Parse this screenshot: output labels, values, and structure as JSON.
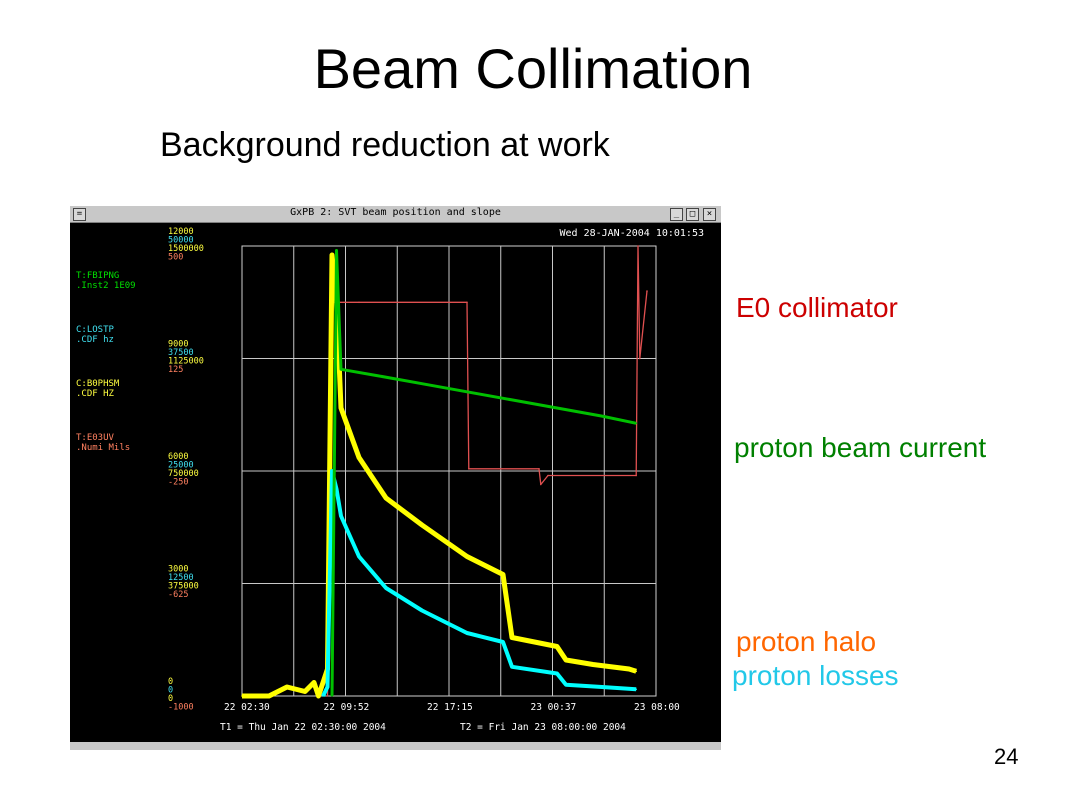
{
  "slide": {
    "title": "Beam Collimation",
    "subtitle": "Background reduction at work",
    "page_number": "24"
  },
  "window": {
    "title": "GxPB 2: SVT beam position and slope",
    "datetime": "Wed 28-JAN-2004 10:01:53",
    "t1": "T1 = Thu Jan 22 02:30:00 2004",
    "t2": "T2 = Fri Jan 23 08:00:00 2004",
    "buttons": {
      "menu": "=",
      "minimize": "_",
      "maximize": "□",
      "close": "×"
    }
  },
  "colors": {
    "yellow": "#ffff00",
    "green": "#00c000",
    "cyan": "#00ffff",
    "red": "#e05050",
    "annot_red": "#cc0000",
    "annot_green": "#008000",
    "annot_orange": "#ff6600",
    "annot_cyan": "#22c8e8",
    "label_green": "#00e000",
    "label_cyan": "#40e0f0",
    "label_orange": "#ff8060"
  },
  "devices": [
    {
      "name": "T:FBIPNG",
      "units": ".Inst2  1E09",
      "color": "#00e000"
    },
    {
      "name": "C:LOSTP",
      "units": ".CDF      hz",
      "color": "#40e0f0"
    },
    {
      "name": "C:B0PHSM",
      "units": ".CDF     HZ",
      "color": "#ffff40"
    },
    {
      "name": "T:E03UV",
      "units": ".Numi   Mils",
      "color": "#ff8060"
    }
  ],
  "annotations": {
    "collimator": "E0 collimator",
    "beam_current": "proton beam current",
    "halo": "proton halo",
    "losses": "proton losses"
  },
  "chart_data": {
    "type": "line",
    "title": "",
    "xlabel": "",
    "ylabel": "",
    "grid": true,
    "x_tick_labels": [
      "22 02:30",
      "22 09:52",
      "22 17:15",
      "23 00:37",
      "23 08:00"
    ],
    "y_axes": [
      {
        "color": "#ffff40",
        "ticks": [
          "12000",
          "9000",
          "6000",
          "3000",
          "0"
        ]
      },
      {
        "color": "#40e0f0",
        "ticks": [
          "50000",
          "37500",
          "25000",
          "12500",
          "0"
        ]
      },
      {
        "color": "#ffff40",
        "ticks": [
          "1500000",
          "1125000",
          "750000",
          "375000",
          "0"
        ]
      },
      {
        "color": "#ff8060",
        "ticks": [
          "500",
          "125",
          "-250",
          "-625",
          "-1000"
        ]
      }
    ],
    "series": [
      {
        "name": "T:FBIPNG",
        "color": "#00c000",
        "x": [
          1.0,
          1.05,
          1.1,
          1.5,
          2.0,
          2.5,
          3.0,
          3.5,
          4.0,
          4.38
        ],
        "y": [
          0.0,
          0.99,
          0.726,
          0.712,
          0.694,
          0.676,
          0.658,
          0.64,
          0.622,
          0.606
        ]
      },
      {
        "name": "C:B0PHSM",
        "color": "#ffff00",
        "x": [
          0.0,
          0.3,
          0.5,
          0.7,
          0.8,
          0.85,
          0.9,
          0.95,
          1.0,
          1.05,
          1.1,
          1.3,
          1.6,
          2.0,
          2.5,
          2.9,
          3.0,
          3.5,
          3.6,
          3.9,
          4.3,
          4.38
        ],
        "y": [
          0.0,
          0.0,
          0.02,
          0.01,
          0.03,
          0.0,
          0.03,
          0.06,
          0.98,
          0.88,
          0.64,
          0.53,
          0.44,
          0.38,
          0.31,
          0.27,
          0.13,
          0.11,
          0.08,
          0.07,
          0.06,
          0.055
        ]
      },
      {
        "name": "C:LOSTP",
        "color": "#00ffff",
        "x": [
          0.9,
          0.95,
          1.0,
          1.05,
          1.1,
          1.3,
          1.6,
          2.0,
          2.5,
          2.9,
          3.0,
          3.5,
          3.6,
          4.0,
          4.38
        ],
        "y": [
          0.0,
          0.02,
          0.5,
          0.46,
          0.4,
          0.31,
          0.24,
          0.19,
          0.14,
          0.12,
          0.065,
          0.05,
          0.025,
          0.02,
          0.015
        ]
      },
      {
        "name": "T:E03UV",
        "color": "#e05050",
        "x": [
          0.95,
          1.0,
          1.3,
          2.5,
          2.52,
          3.3,
          3.32,
          3.4,
          4.38,
          4.4,
          4.42,
          4.5
        ],
        "y": [
          0.0,
          0.875,
          0.875,
          0.875,
          0.505,
          0.505,
          0.47,
          0.49,
          0.49,
          1.0,
          0.75,
          0.9
        ]
      }
    ],
    "x_range": [
      0,
      4.6
    ],
    "y_range": [
      0,
      1
    ]
  }
}
